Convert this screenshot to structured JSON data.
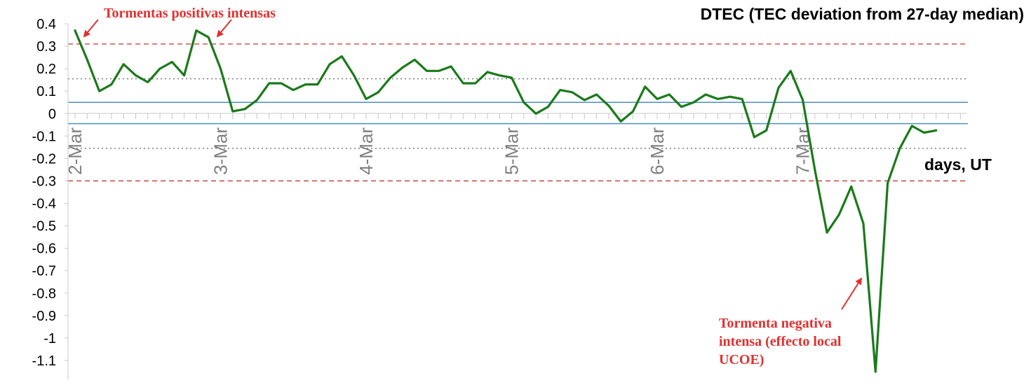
{
  "chart_data": {
    "type": "line",
    "title": "DTEC (TEC deviation from 27-day median)",
    "xlabel": "days, UT",
    "ylabel": "",
    "ylim": [
      -1.15,
      0.4
    ],
    "yticks": [
      0.4,
      0.3,
      0.2,
      0.1,
      0,
      -0.1,
      -0.2,
      -0.3,
      -0.4,
      -0.5,
      -0.6,
      -0.7,
      -0.8,
      -0.9,
      -1,
      -1.1
    ],
    "ytick_labels": [
      "0.4",
      "0.3",
      "0.2",
      "0.1",
      "0",
      "-0.1",
      "-0.2",
      "-0.3",
      "-0.4",
      "-0.5",
      "-0.6",
      "-0.7",
      "-0.8",
      "-0.9",
      "-1",
      "-1.1"
    ],
    "xlim": [
      0,
      6.125
    ],
    "xticks": [
      {
        "x": 0,
        "label": "2-Mar"
      },
      {
        "x": 1,
        "label": "3-Mar"
      },
      {
        "x": 2,
        "label": "4-Mar"
      },
      {
        "x": 3,
        "label": "5-Mar"
      },
      {
        "x": 4,
        "label": "6-Mar"
      },
      {
        "x": 5,
        "label": "7-Mar"
      }
    ],
    "grid": false,
    "reference_lines": [
      {
        "y": 0.31,
        "style": "dashed",
        "color": "#c0392b"
      },
      {
        "y": -0.3,
        "style": "dashed",
        "color": "#c0392b"
      },
      {
        "y": 0.155,
        "style": "dotted",
        "color": "#707070"
      },
      {
        "y": -0.155,
        "style": "dotted",
        "color": "#707070"
      },
      {
        "y": 0.05,
        "style": "solid",
        "color": "#4a90c8"
      },
      {
        "y": -0.045,
        "style": "solid",
        "color": "#4a90c8"
      }
    ],
    "series": [
      {
        "color": "#1a7a1a",
        "values": [
          0.37,
          0.24,
          0.1,
          0.13,
          0.22,
          0.17,
          0.14,
          0.2,
          0.23,
          0.17,
          0.37,
          0.34,
          0.2,
          0.01,
          0.02,
          0.06,
          0.135,
          0.135,
          0.105,
          0.13,
          0.13,
          0.22,
          0.255,
          0.17,
          0.065,
          0.095,
          0.16,
          0.205,
          0.24,
          0.19,
          0.19,
          0.21,
          0.135,
          0.135,
          0.185,
          0.17,
          0.16,
          0.05,
          0.0,
          0.03,
          0.105,
          0.095,
          0.06,
          0.085,
          0.035,
          -0.035,
          0.01,
          0.12,
          0.065,
          0.085,
          0.03,
          0.05,
          0.085,
          0.065,
          0.075,
          0.065,
          -0.105,
          -0.075,
          0.115,
          0.19,
          0.06,
          -0.25,
          -0.53,
          -0.45,
          -0.325,
          -0.49,
          -1.15,
          -0.31,
          -0.155,
          -0.055,
          -0.085,
          -0.075
        ]
      }
    ],
    "x_step": 0.0833333,
    "annotations": [
      {
        "lines": [
          "Tormentas positivas intensas"
        ]
      },
      {
        "lines": [
          "Tormenta negativa",
          "intensa (effecto local",
          "UCOE)"
        ]
      }
    ]
  }
}
